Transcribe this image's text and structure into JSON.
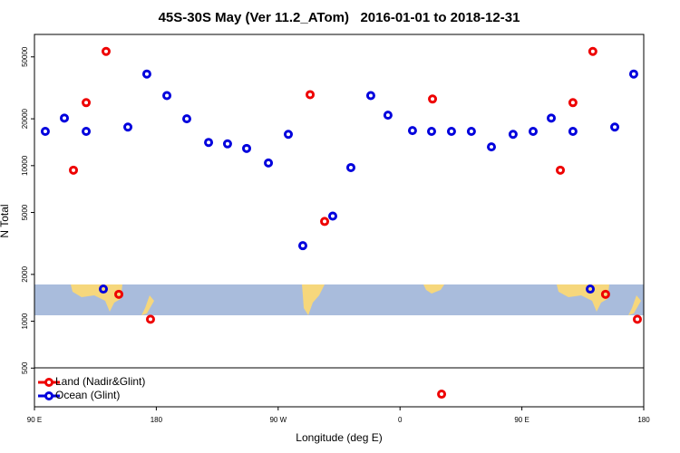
{
  "chart_data": {
    "type": "scatter",
    "title": "45S-30S May (Ver 11.2_ATom)   2016-01-01 to 2018-12-31",
    "xlabel": "Longitude (deg E)",
    "ylabel": "N Total",
    "xlim": [
      90,
      540
    ],
    "xticks": [
      {
        "value": 90,
        "label": "90 E"
      },
      {
        "value": 180,
        "label": "180"
      },
      {
        "value": 270,
        "label": "90 W"
      },
      {
        "value": 360,
        "label": "0"
      },
      {
        "value": 450,
        "label": "90 E"
      },
      {
        "value": 540,
        "label": "180"
      }
    ],
    "ylim": [
      282,
      69700
    ],
    "yticks": [
      500,
      1000,
      2000,
      5000,
      10000,
      20000,
      50000
    ],
    "log_y": true,
    "legend": "bottom-left",
    "series": [
      {
        "name": "Land (Nadir&Glint)",
        "color": "#ee0000",
        "x": [
          118.8,
          128.2,
          142.9,
          152.3,
          175.7,
          293.6,
          304.3,
          384.0,
          390.7,
          478.4,
          487.7,
          502.4,
          511.8,
          535.3
        ],
        "values": [
          9350,
          25400,
          54200,
          1490,
          1030,
          28600,
          4380,
          26800,
          340,
          9350,
          25400,
          54200,
          1490,
          1030
        ]
      },
      {
        "name": "Ocean (Glint)",
        "color": "#0000dd",
        "x": [
          98.0,
          112.1,
          128.2,
          140.9,
          159.0,
          173.0,
          187.8,
          202.5,
          218.6,
          232.6,
          246.7,
          262.8,
          277.5,
          288.2,
          310.3,
          323.7,
          338.4,
          351.1,
          369.2,
          383.3,
          398.0,
          412.7,
          427.5,
          443.5,
          458.3,
          471.7,
          487.7,
          500.5,
          518.6,
          532.6
        ],
        "values": [
          16600,
          20200,
          16600,
          1610,
          17700,
          38800,
          28200,
          20000,
          14100,
          13800,
          12900,
          10400,
          15900,
          3060,
          4740,
          9720,
          28200,
          21100,
          16800,
          16600,
          16600,
          16600,
          13200,
          15900,
          16600,
          20200,
          16600,
          1610,
          17700,
          38800
        ]
      }
    ]
  }
}
